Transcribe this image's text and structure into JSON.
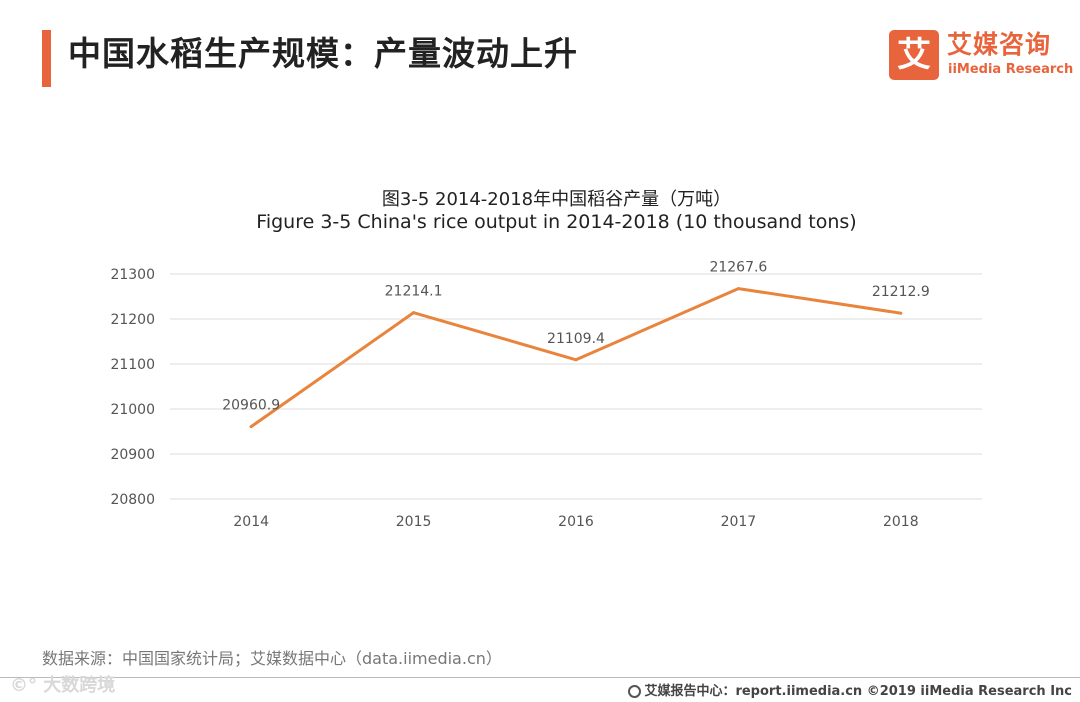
{
  "header": {
    "title": "中国水稻生产规模：产量波动上升",
    "accent_color": "#e8643c"
  },
  "logo": {
    "icon_glyph": "艾",
    "name_cn": "艾媒咨询",
    "name_en": "iiMedia Research"
  },
  "chart_data": {
    "type": "line",
    "title_cn": "图3-5 2014-2018年中国稻谷产量（万吨）",
    "title_en": "Figure 3-5 China's rice output in 2014-2018 (10 thousand tons)",
    "categories": [
      "2014",
      "2015",
      "2016",
      "2017",
      "2018"
    ],
    "values": [
      20960.9,
      21214.1,
      21109.4,
      21267.6,
      21212.9
    ],
    "data_labels": [
      "20960.9",
      "21214.1",
      "21109.4",
      "21267.6",
      "21212.9"
    ],
    "ylim": [
      20800,
      21300
    ],
    "yticks": [
      "20800",
      "20900",
      "21000",
      "21100",
      "21200",
      "21300"
    ],
    "grid": true,
    "line_color": "#e8843c"
  },
  "source": "数据来源：中国国家统计局；艾媒数据中心（data.iimedia.cn）",
  "footer": {
    "report_text": "艾媒报告中心：report.iimedia.cn  ©2019  iiMedia Research  Inc",
    "watermark": "©° 大数跨境"
  }
}
